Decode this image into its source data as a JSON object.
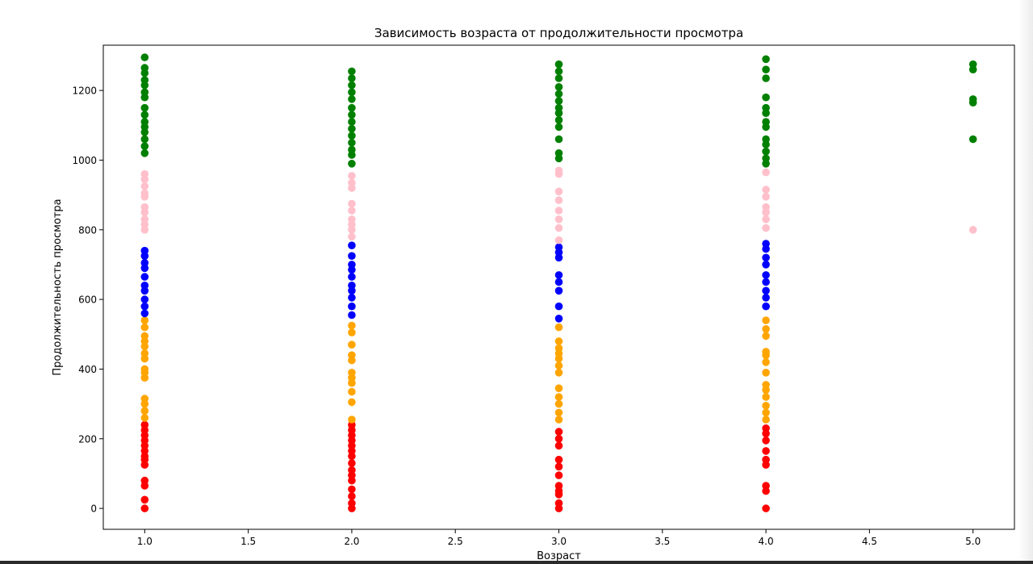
{
  "chart_data": {
    "type": "scatter",
    "title": "Зависимость возраста от продолжительности просмотра",
    "xlabel": "Возраст",
    "ylabel": "Продолжительность просмотра",
    "xlim": [
      0.8,
      5.2
    ],
    "ylim": [
      -60,
      1330
    ],
    "xticks": [
      1.0,
      1.5,
      2.0,
      2.5,
      3.0,
      3.5,
      4.0,
      4.5,
      5.0
    ],
    "xtick_labels": [
      "1.0",
      "1.5",
      "2.0",
      "2.5",
      "3.0",
      "3.5",
      "4.0",
      "4.5",
      "5.0"
    ],
    "yticks": [
      0,
      200,
      400,
      600,
      800,
      1000,
      1200
    ],
    "ytick_labels": [
      "0",
      "200",
      "400",
      "600",
      "800",
      "1000",
      "1200"
    ],
    "grid": false,
    "legend": "none",
    "series": [
      {
        "color": "#ff0000",
        "points": [
          [
            1,
            0
          ],
          [
            1,
            25
          ],
          [
            1,
            65
          ],
          [
            1,
            80
          ],
          [
            1,
            125
          ],
          [
            1,
            140
          ],
          [
            1,
            150
          ],
          [
            1,
            165
          ],
          [
            1,
            180
          ],
          [
            1,
            195
          ],
          [
            1,
            210
          ],
          [
            1,
            225
          ],
          [
            1,
            240
          ],
          [
            2,
            0
          ],
          [
            2,
            15
          ],
          [
            2,
            35
          ],
          [
            2,
            55
          ],
          [
            2,
            80
          ],
          [
            2,
            95
          ],
          [
            2,
            110
          ],
          [
            2,
            130
          ],
          [
            2,
            150
          ],
          [
            2,
            165
          ],
          [
            2,
            180
          ],
          [
            2,
            195
          ],
          [
            2,
            210
          ],
          [
            2,
            225
          ],
          [
            2,
            240
          ],
          [
            3,
            0
          ],
          [
            3,
            15
          ],
          [
            3,
            40
          ],
          [
            3,
            50
          ],
          [
            3,
            65
          ],
          [
            3,
            95
          ],
          [
            3,
            120
          ],
          [
            3,
            140
          ],
          [
            3,
            180
          ],
          [
            3,
            200
          ],
          [
            3,
            220
          ],
          [
            4,
            0
          ],
          [
            4,
            50
          ],
          [
            4,
            65
          ],
          [
            4,
            125
          ],
          [
            4,
            140
          ],
          [
            4,
            165
          ],
          [
            4,
            195
          ],
          [
            4,
            215
          ],
          [
            4,
            230
          ]
        ]
      },
      {
        "color": "#ffa500",
        "points": [
          [
            1,
            260
          ],
          [
            1,
            280
          ],
          [
            1,
            300
          ],
          [
            1,
            315
          ],
          [
            1,
            375
          ],
          [
            1,
            390
          ],
          [
            1,
            400
          ],
          [
            1,
            430
          ],
          [
            1,
            445
          ],
          [
            1,
            465
          ],
          [
            1,
            480
          ],
          [
            1,
            495
          ],
          [
            1,
            520
          ],
          [
            1,
            540
          ],
          [
            2,
            255
          ],
          [
            2,
            305
          ],
          [
            2,
            335
          ],
          [
            2,
            360
          ],
          [
            2,
            375
          ],
          [
            2,
            390
          ],
          [
            2,
            425
          ],
          [
            2,
            440
          ],
          [
            2,
            470
          ],
          [
            2,
            505
          ],
          [
            2,
            525
          ],
          [
            3,
            255
          ],
          [
            3,
            275
          ],
          [
            3,
            300
          ],
          [
            3,
            320
          ],
          [
            3,
            345
          ],
          [
            3,
            390
          ],
          [
            3,
            410
          ],
          [
            3,
            430
          ],
          [
            3,
            445
          ],
          [
            3,
            460
          ],
          [
            3,
            480
          ],
          [
            3,
            520
          ],
          [
            4,
            255
          ],
          [
            4,
            275
          ],
          [
            4,
            295
          ],
          [
            4,
            320
          ],
          [
            4,
            340
          ],
          [
            4,
            355
          ],
          [
            4,
            390
          ],
          [
            4,
            420
          ],
          [
            4,
            440
          ],
          [
            4,
            450
          ],
          [
            4,
            495
          ],
          [
            4,
            515
          ],
          [
            4,
            540
          ]
        ]
      },
      {
        "color": "#0000ff",
        "points": [
          [
            1,
            560
          ],
          [
            1,
            580
          ],
          [
            1,
            600
          ],
          [
            1,
            625
          ],
          [
            1,
            640
          ],
          [
            1,
            665
          ],
          [
            1,
            690
          ],
          [
            1,
            705
          ],
          [
            1,
            725
          ],
          [
            1,
            740
          ],
          [
            2,
            555
          ],
          [
            2,
            580
          ],
          [
            2,
            605
          ],
          [
            2,
            625
          ],
          [
            2,
            640
          ],
          [
            2,
            665
          ],
          [
            2,
            685
          ],
          [
            2,
            700
          ],
          [
            2,
            725
          ],
          [
            2,
            755
          ],
          [
            3,
            545
          ],
          [
            3,
            580
          ],
          [
            3,
            625
          ],
          [
            3,
            650
          ],
          [
            3,
            670
          ],
          [
            3,
            720
          ],
          [
            3,
            735
          ],
          [
            3,
            750
          ],
          [
            4,
            580
          ],
          [
            4,
            605
          ],
          [
            4,
            625
          ],
          [
            4,
            650
          ],
          [
            4,
            670
          ],
          [
            4,
            700
          ],
          [
            4,
            720
          ],
          [
            4,
            745
          ],
          [
            4,
            760
          ]
        ]
      },
      {
        "color": "#ffc0cb",
        "points": [
          [
            1,
            800
          ],
          [
            1,
            815
          ],
          [
            1,
            830
          ],
          [
            1,
            850
          ],
          [
            1,
            865
          ],
          [
            1,
            895
          ],
          [
            1,
            905
          ],
          [
            1,
            925
          ],
          [
            1,
            945
          ],
          [
            1,
            960
          ],
          [
            2,
            780
          ],
          [
            2,
            800
          ],
          [
            2,
            815
          ],
          [
            2,
            830
          ],
          [
            2,
            855
          ],
          [
            2,
            875
          ],
          [
            2,
            920
          ],
          [
            2,
            935
          ],
          [
            2,
            955
          ],
          [
            3,
            770
          ],
          [
            3,
            805
          ],
          [
            3,
            830
          ],
          [
            3,
            855
          ],
          [
            3,
            885
          ],
          [
            3,
            910
          ],
          [
            3,
            960
          ],
          [
            3,
            970
          ],
          [
            4,
            805
          ],
          [
            4,
            830
          ],
          [
            4,
            850
          ],
          [
            4,
            865
          ],
          [
            4,
            895
          ],
          [
            4,
            915
          ],
          [
            4,
            965
          ],
          [
            5,
            800
          ]
        ]
      },
      {
        "color": "#008000",
        "points": [
          [
            1,
            1020
          ],
          [
            1,
            1040
          ],
          [
            1,
            1060
          ],
          [
            1,
            1080
          ],
          [
            1,
            1095
          ],
          [
            1,
            1110
          ],
          [
            1,
            1130
          ],
          [
            1,
            1150
          ],
          [
            1,
            1180
          ],
          [
            1,
            1195
          ],
          [
            1,
            1215
          ],
          [
            1,
            1230
          ],
          [
            1,
            1250
          ],
          [
            1,
            1265
          ],
          [
            1,
            1295
          ],
          [
            2,
            990
          ],
          [
            2,
            1015
          ],
          [
            2,
            1030
          ],
          [
            2,
            1050
          ],
          [
            2,
            1070
          ],
          [
            2,
            1090
          ],
          [
            2,
            1110
          ],
          [
            2,
            1130
          ],
          [
            2,
            1150
          ],
          [
            2,
            1175
          ],
          [
            2,
            1195
          ],
          [
            2,
            1215
          ],
          [
            2,
            1235
          ],
          [
            2,
            1255
          ],
          [
            3,
            1005
          ],
          [
            3,
            1020
          ],
          [
            3,
            1060
          ],
          [
            3,
            1095
          ],
          [
            3,
            1115
          ],
          [
            3,
            1135
          ],
          [
            3,
            1150
          ],
          [
            3,
            1170
          ],
          [
            3,
            1190
          ],
          [
            3,
            1210
          ],
          [
            3,
            1235
          ],
          [
            3,
            1255
          ],
          [
            3,
            1275
          ],
          [
            4,
            990
          ],
          [
            4,
            1005
          ],
          [
            4,
            1025
          ],
          [
            4,
            1045
          ],
          [
            4,
            1060
          ],
          [
            4,
            1095
          ],
          [
            4,
            1110
          ],
          [
            4,
            1135
          ],
          [
            4,
            1150
          ],
          [
            4,
            1180
          ],
          [
            4,
            1235
          ],
          [
            4,
            1260
          ],
          [
            4,
            1290
          ],
          [
            5,
            1060
          ],
          [
            5,
            1165
          ],
          [
            5,
            1175
          ],
          [
            5,
            1260
          ],
          [
            5,
            1275
          ]
        ]
      }
    ]
  }
}
